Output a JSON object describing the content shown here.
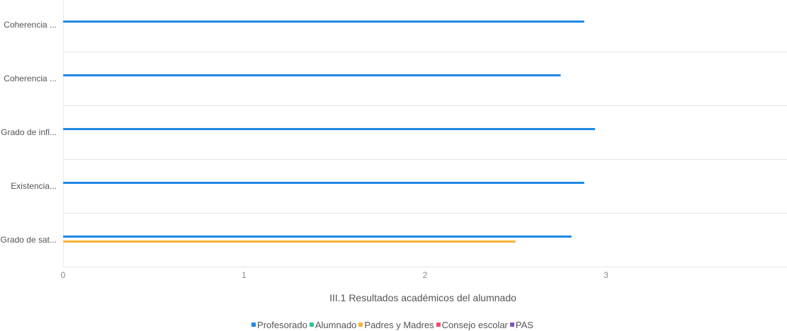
{
  "chart_data": {
    "type": "bar",
    "orientation": "horizontal",
    "title": "III.1 Resultados académicos del alumnado",
    "categories": [
      "Coherencia ...",
      "Coherencia ...",
      "Grado de infl...",
      "Existencia...",
      "Grado de sat..."
    ],
    "series": [
      {
        "name": "Profesorado",
        "color": "#1E88E5",
        "values": [
          2.88,
          2.75,
          2.94,
          2.88,
          2.81
        ]
      },
      {
        "name": "Alumnado",
        "color": "#26C99A",
        "values": [
          null,
          null,
          null,
          null,
          null
        ]
      },
      {
        "name": "Padres y Madres",
        "color": "#F9B233",
        "values": [
          null,
          null,
          null,
          null,
          2.5
        ]
      },
      {
        "name": "Consejo escolar",
        "color": "#EF4B6C",
        "values": [
          null,
          null,
          null,
          null,
          null
        ]
      },
      {
        "name": "PAS",
        "color": "#7E57C2",
        "values": [
          null,
          null,
          null,
          null,
          null
        ]
      }
    ],
    "x_ticks": [
      "0",
      "1",
      "2",
      "3"
    ],
    "xlim": [
      0,
      4
    ],
    "grid": true,
    "legend_position": "bottom"
  }
}
